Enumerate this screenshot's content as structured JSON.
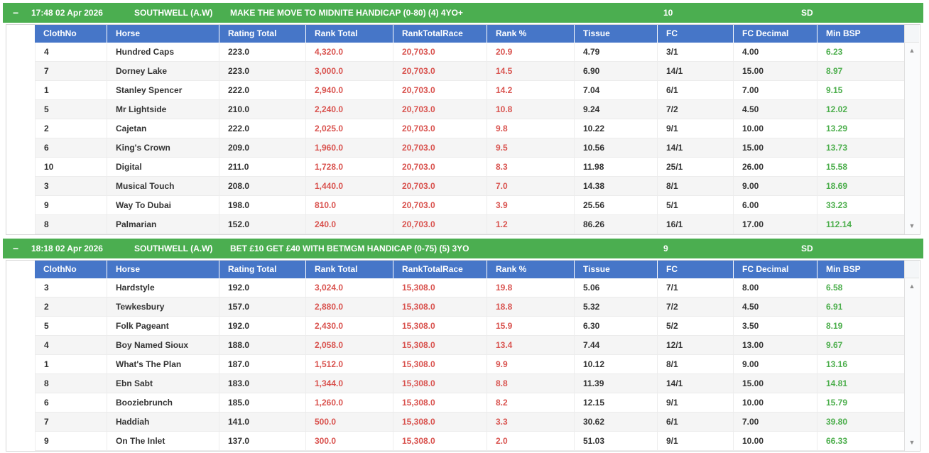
{
  "ui": {
    "collapse_glyph": "−",
    "scroll_up_glyph": "▲",
    "scroll_down_glyph": "▼"
  },
  "colors": {
    "race_bar_green": "#4bae50",
    "table_header_blue": "#4676c8",
    "rank_red": "#d9534f",
    "min_bsp_green": "#4cae4c",
    "cell_text": "#333333"
  },
  "columns": [
    "ClothNo",
    "Horse",
    "Rating Total",
    "Rank Total",
    "RankTotalRace",
    "Rank %",
    "Tissue",
    "FC",
    "FC Decimal",
    "Min BSP"
  ],
  "races": [
    {
      "time_date": "17:48 02 Apr 2026",
      "course": "SOUTHWELL (A.W)",
      "race_name": "MAKE THE MOVE TO MIDNITE HANDICAP (0-80) (4) 4YO+",
      "runners": "10",
      "code": "SD",
      "rows": [
        [
          "4",
          "Hundred Caps",
          "223.0",
          "4,320.0",
          "20,703.0",
          "20.9",
          "4.79",
          "3/1",
          "4.00",
          "6.23"
        ],
        [
          "7",
          "Dorney Lake",
          "223.0",
          "3,000.0",
          "20,703.0",
          "14.5",
          "6.90",
          "14/1",
          "15.00",
          "8.97"
        ],
        [
          "1",
          "Stanley Spencer",
          "222.0",
          "2,940.0",
          "20,703.0",
          "14.2",
          "7.04",
          "6/1",
          "7.00",
          "9.15"
        ],
        [
          "5",
          "Mr Lightside",
          "210.0",
          "2,240.0",
          "20,703.0",
          "10.8",
          "9.24",
          "7/2",
          "4.50",
          "12.02"
        ],
        [
          "2",
          "Cajetan",
          "222.0",
          "2,025.0",
          "20,703.0",
          "9.8",
          "10.22",
          "9/1",
          "10.00",
          "13.29"
        ],
        [
          "6",
          "King's Crown",
          "209.0",
          "1,960.0",
          "20,703.0",
          "9.5",
          "10.56",
          "14/1",
          "15.00",
          "13.73"
        ],
        [
          "10",
          "Digital",
          "211.0",
          "1,728.0",
          "20,703.0",
          "8.3",
          "11.98",
          "25/1",
          "26.00",
          "15.58"
        ],
        [
          "3",
          "Musical Touch",
          "208.0",
          "1,440.0",
          "20,703.0",
          "7.0",
          "14.38",
          "8/1",
          "9.00",
          "18.69"
        ],
        [
          "9",
          "Way To Dubai",
          "198.0",
          "810.0",
          "20,703.0",
          "3.9",
          "25.56",
          "5/1",
          "6.00",
          "33.23"
        ],
        [
          "8",
          "Palmarian",
          "152.0",
          "240.0",
          "20,703.0",
          "1.2",
          "86.26",
          "16/1",
          "17.00",
          "112.14"
        ]
      ]
    },
    {
      "time_date": "18:18 02 Apr 2026",
      "course": "SOUTHWELL (A.W)",
      "race_name": "BET £10 GET £40 WITH BETMGM HANDICAP (0-75) (5) 3YO",
      "runners": "9",
      "code": "SD",
      "rows": [
        [
          "3",
          "Hardstyle",
          "192.0",
          "3,024.0",
          "15,308.0",
          "19.8",
          "5.06",
          "7/1",
          "8.00",
          "6.58"
        ],
        [
          "2",
          "Tewkesbury",
          "157.0",
          "2,880.0",
          "15,308.0",
          "18.8",
          "5.32",
          "7/2",
          "4.50",
          "6.91"
        ],
        [
          "5",
          "Folk Pageant",
          "192.0",
          "2,430.0",
          "15,308.0",
          "15.9",
          "6.30",
          "5/2",
          "3.50",
          "8.19"
        ],
        [
          "4",
          "Boy Named Sioux",
          "188.0",
          "2,058.0",
          "15,308.0",
          "13.4",
          "7.44",
          "12/1",
          "13.00",
          "9.67"
        ],
        [
          "1",
          "What's The Plan",
          "187.0",
          "1,512.0",
          "15,308.0",
          "9.9",
          "10.12",
          "8/1",
          "9.00",
          "13.16"
        ],
        [
          "8",
          "Ebn Sabt",
          "183.0",
          "1,344.0",
          "15,308.0",
          "8.8",
          "11.39",
          "14/1",
          "15.00",
          "14.81"
        ],
        [
          "6",
          "Booziebrunch",
          "185.0",
          "1,260.0",
          "15,308.0",
          "8.2",
          "12.15",
          "9/1",
          "10.00",
          "15.79"
        ],
        [
          "7",
          "Haddiah",
          "141.0",
          "500.0",
          "15,308.0",
          "3.3",
          "30.62",
          "6/1",
          "7.00",
          "39.80"
        ],
        [
          "9",
          "On The Inlet",
          "137.0",
          "300.0",
          "15,308.0",
          "2.0",
          "51.03",
          "9/1",
          "10.00",
          "66.33"
        ]
      ]
    }
  ]
}
